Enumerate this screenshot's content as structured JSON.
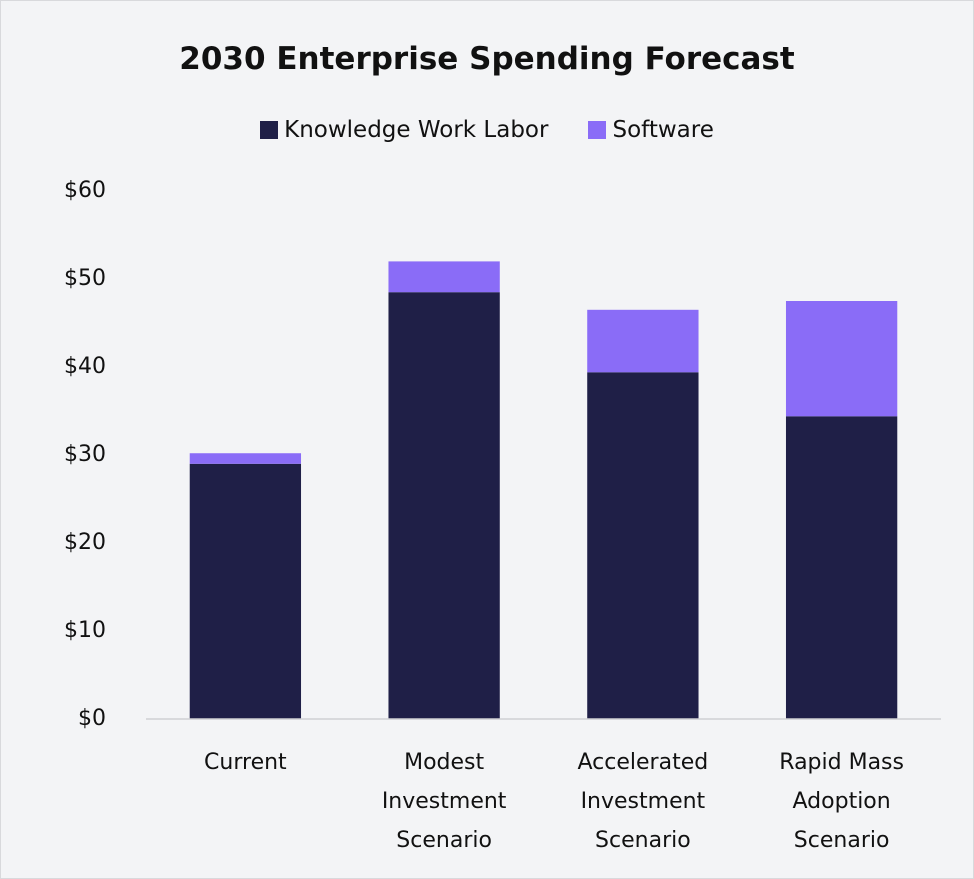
{
  "chart_data": {
    "type": "stacked_bar",
    "title": "2030 Enterprise Spending Forecast",
    "categories": [
      "Current",
      "Modest Investment Scenario",
      "Accelerated Investment Scenario",
      "Rapid Mass Adoption Scenario"
    ],
    "series": [
      {
        "name": "Knowledge Work Labor",
        "color": "#1f1f47",
        "values": [
          29.0,
          48.5,
          39.4,
          34.4
        ]
      },
      {
        "name": "Software",
        "color": "#8a6cf7",
        "values": [
          1.2,
          3.5,
          7.1,
          13.1
        ]
      }
    ],
    "ylim": [
      0,
      60
    ],
    "yticks": [
      {
        "value": 0,
        "label": "$0"
      },
      {
        "value": 10,
        "label": "$10"
      },
      {
        "value": 20,
        "label": "$20"
      },
      {
        "value": 30,
        "label": "$30"
      },
      {
        "value": 40,
        "label": "$40"
      },
      {
        "value": 50,
        "label": "$50"
      },
      {
        "value": 60,
        "label": "$60"
      }
    ],
    "legend": "top"
  }
}
